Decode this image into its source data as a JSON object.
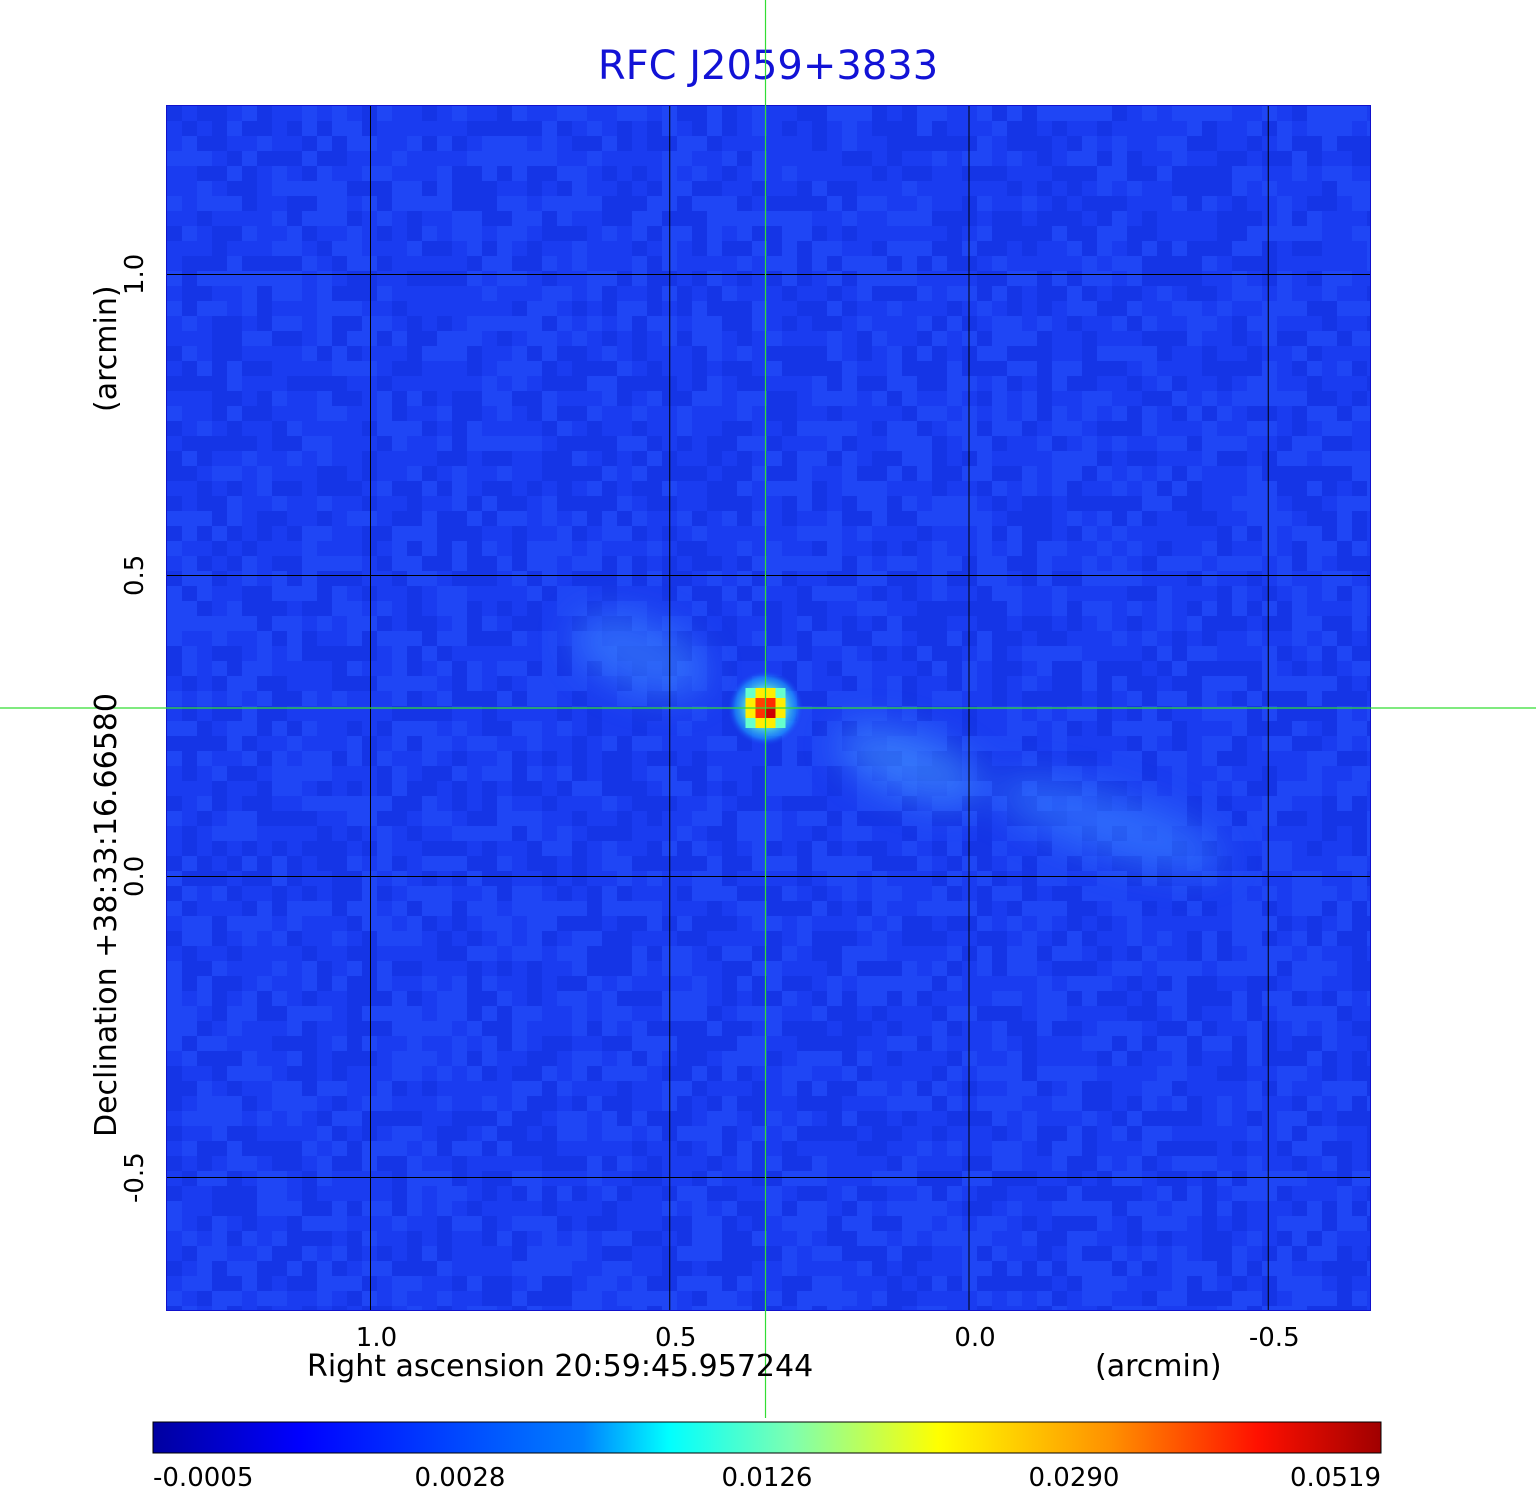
{
  "title": "RFC J2059+3833",
  "x_axis": {
    "label": "Right ascension  20:59:45.957244",
    "unit_label": "(arcmin)",
    "ticks": [
      {
        "label": "1.0",
        "value": 1.0
      },
      {
        "label": "0.5",
        "value": 0.5
      },
      {
        "label": "0.0",
        "value": 0.0
      },
      {
        "label": "-0.5",
        "value": -0.5
      }
    ],
    "range": [
      1.34,
      -0.67
    ]
  },
  "y_axis": {
    "label": "Declination  +38:33:16.66580",
    "unit_label": "(arcmin)",
    "ticks": [
      {
        "label": "1.0",
        "value": 1.0
      },
      {
        "label": "0.5",
        "value": 0.5
      },
      {
        "label": "0.0",
        "value": 0.0
      },
      {
        "label": "-0.5",
        "value": -0.5
      }
    ],
    "range": [
      -0.72,
      1.28
    ]
  },
  "colorbar": {
    "colormap": "jet",
    "ticks": [
      "-0.0005",
      "0.0028",
      "0.0126",
      "0.0290",
      "0.0519"
    ]
  },
  "source_marker": {
    "x_arcmin": 0.34,
    "y_arcmin": 0.28,
    "color": "#33dd33"
  },
  "colors": {
    "title": "#1212d6",
    "background_map": "#1a3cf0",
    "grid": "#000000",
    "crosshair": "#33dd33"
  }
}
